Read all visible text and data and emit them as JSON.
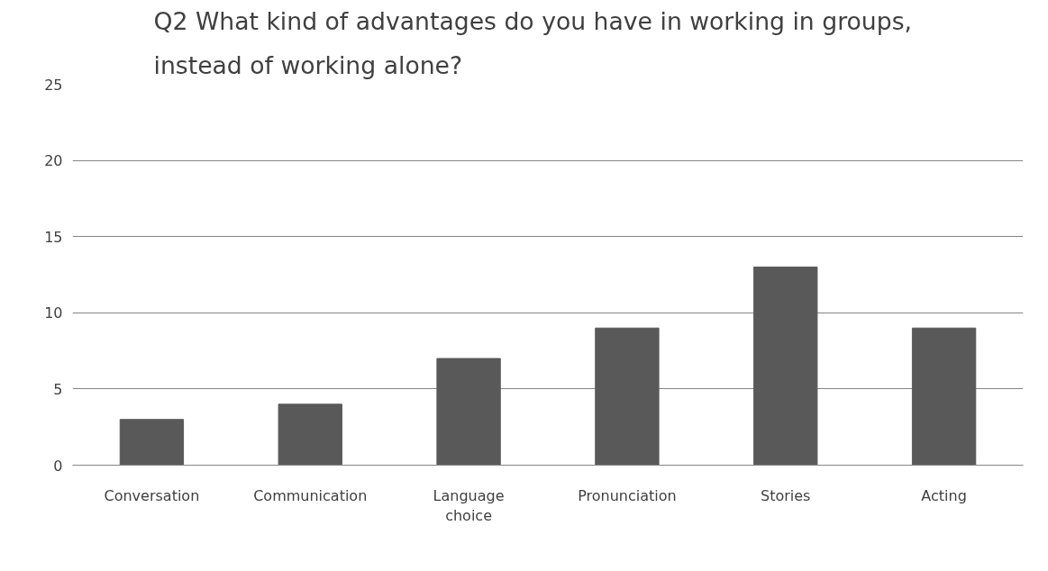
{
  "chart_data": {
    "type": "bar",
    "title": "Q2 What kind of advantages do you have in working in groups, instead of working alone?",
    "categories": [
      "Conversation",
      "Communication",
      "Language choice",
      "Pronunciation",
      "Stories",
      "Acting"
    ],
    "values": [
      3,
      4,
      7,
      9,
      13,
      9
    ],
    "color": "#595959",
    "ylim": [
      0,
      25
    ],
    "yticks": [
      0,
      5,
      10,
      15,
      20,
      25
    ],
    "grid": "y"
  }
}
